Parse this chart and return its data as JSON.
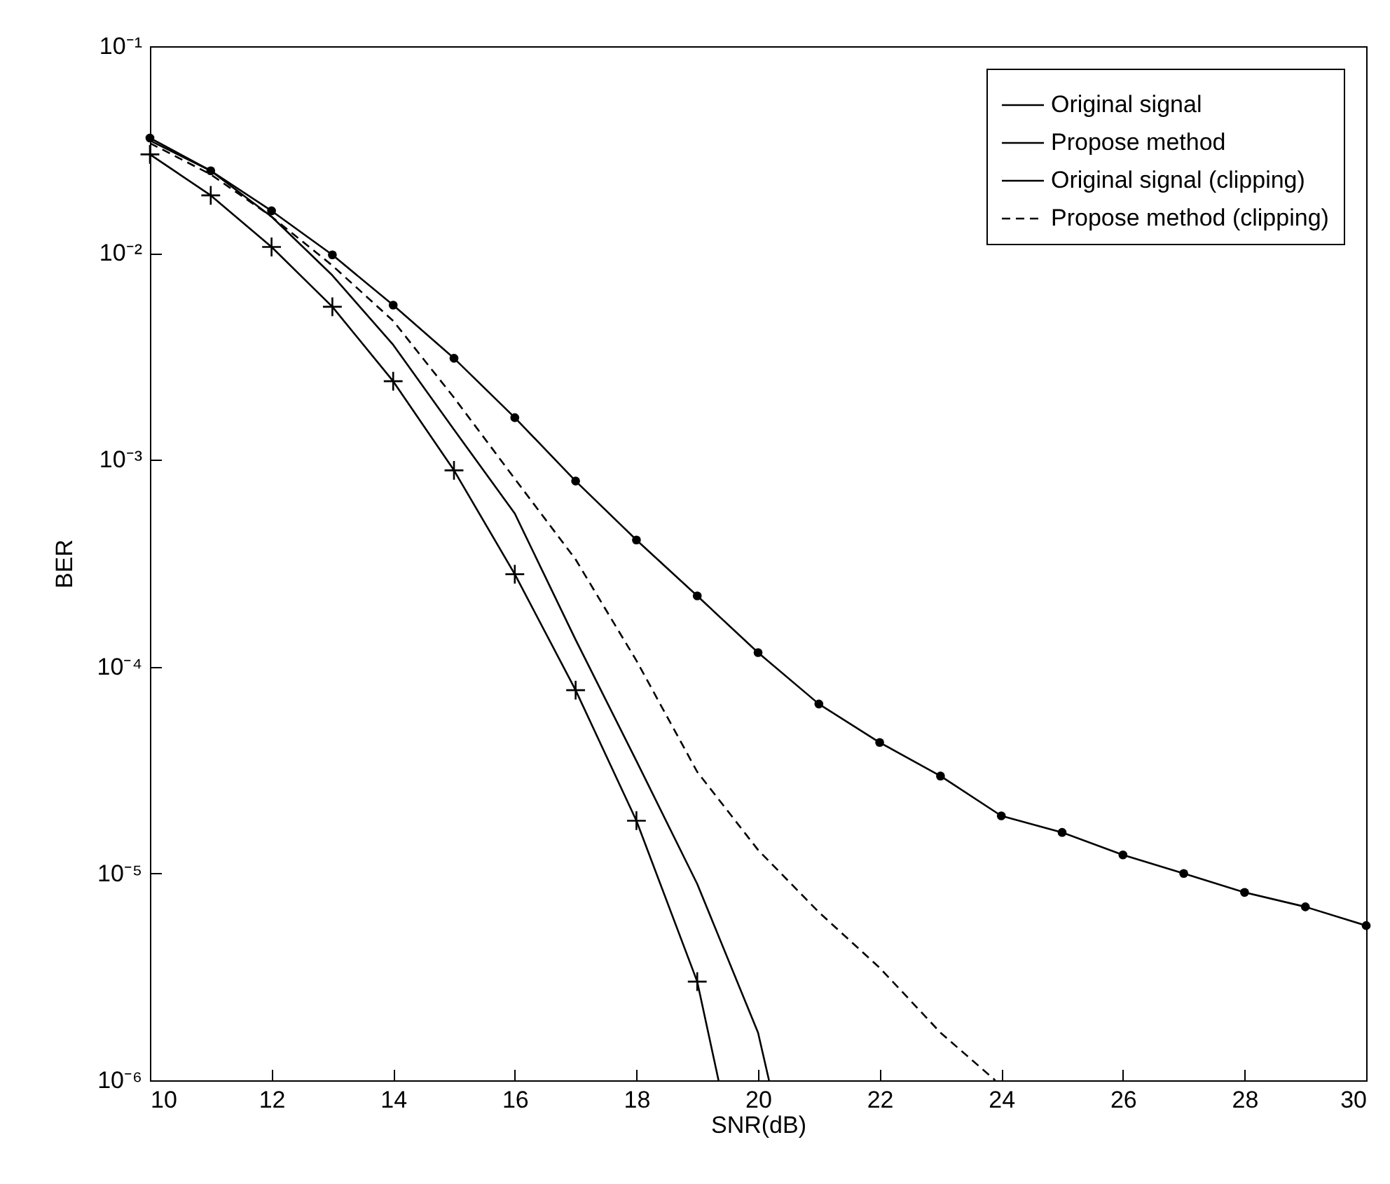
{
  "chart_data": {
    "type": "line",
    "xlabel": "SNR(dB)",
    "ylabel": "BER",
    "log": true,
    "grid": false,
    "legend": "top right",
    "xlim": [
      10,
      30
    ],
    "xticks": [
      10,
      12,
      14,
      16,
      18,
      20,
      22,
      24,
      26,
      28,
      30
    ],
    "ylim": [
      1e-06,
      0.1
    ],
    "yticks": [
      {
        "value": 1e-06,
        "label": "10⁻⁶"
      },
      {
        "value": 1e-05,
        "label": "10⁻⁵"
      },
      {
        "value": 0.0001,
        "label": "10⁻⁴"
      },
      {
        "value": 0.001,
        "label": "10⁻³"
      },
      {
        "value": 0.01,
        "label": "10⁻²"
      },
      {
        "value": 0.1,
        "label": "10⁻¹"
      }
    ],
    "series": [
      {
        "name": "Original signal",
        "color": "#000000",
        "marker": "cross",
        "line_style": "solid",
        "x": [
          10,
          11,
          12,
          13,
          14,
          15,
          16,
          17,
          18,
          19,
          19.35
        ],
        "values": [
          0.03,
          0.019,
          0.0107,
          0.0055,
          0.0024,
          0.00089,
          0.00028,
          7.7e-05,
          1.8e-05,
          3e-06,
          1e-06
        ]
      },
      {
        "name": "Propose method",
        "color": "#000000",
        "marker": "none",
        "line_style": "solid",
        "x": [
          10,
          11,
          12,
          13,
          14,
          15,
          16,
          17,
          18,
          19,
          20,
          20.18
        ],
        "values": [
          0.035,
          0.025,
          0.015,
          0.0078,
          0.0036,
          0.0014,
          0.00055,
          0.000135,
          3.5e-05,
          8.9e-06,
          1.7e-06,
          1e-06
        ]
      },
      {
        "name": "Original signal (clipping)",
        "color": "#000000",
        "marker": "circle",
        "line_style": "solid",
        "x": [
          10,
          11,
          12,
          13,
          14,
          15,
          16,
          17,
          18,
          19,
          20,
          21,
          22,
          23,
          24,
          25,
          26,
          27,
          28,
          29,
          30
        ],
        "values": [
          0.036,
          0.025,
          0.016,
          0.0098,
          0.0056,
          0.0031,
          0.0016,
          0.00079,
          0.00041,
          0.00022,
          0.000117,
          6.6e-05,
          4.3e-05,
          2.96e-05,
          1.9e-05,
          1.58e-05,
          1.23e-05,
          1e-05,
          8.1e-06,
          6.9e-06,
          5.6e-06
        ]
      },
      {
        "name": "Propose method (clipping)",
        "color": "#000000",
        "marker": "none",
        "line_style": "dashed",
        "x": [
          10,
          11,
          12,
          13,
          14,
          15,
          16,
          17,
          18,
          19,
          20,
          21,
          22,
          23,
          23.9
        ],
        "values": [
          0.034,
          0.024,
          0.015,
          0.0087,
          0.0047,
          0.002,
          0.00081,
          0.00033,
          0.000107,
          3.1e-05,
          1.3e-05,
          6.5e-06,
          3.5e-06,
          1.7e-06,
          1e-06
        ]
      }
    ]
  }
}
